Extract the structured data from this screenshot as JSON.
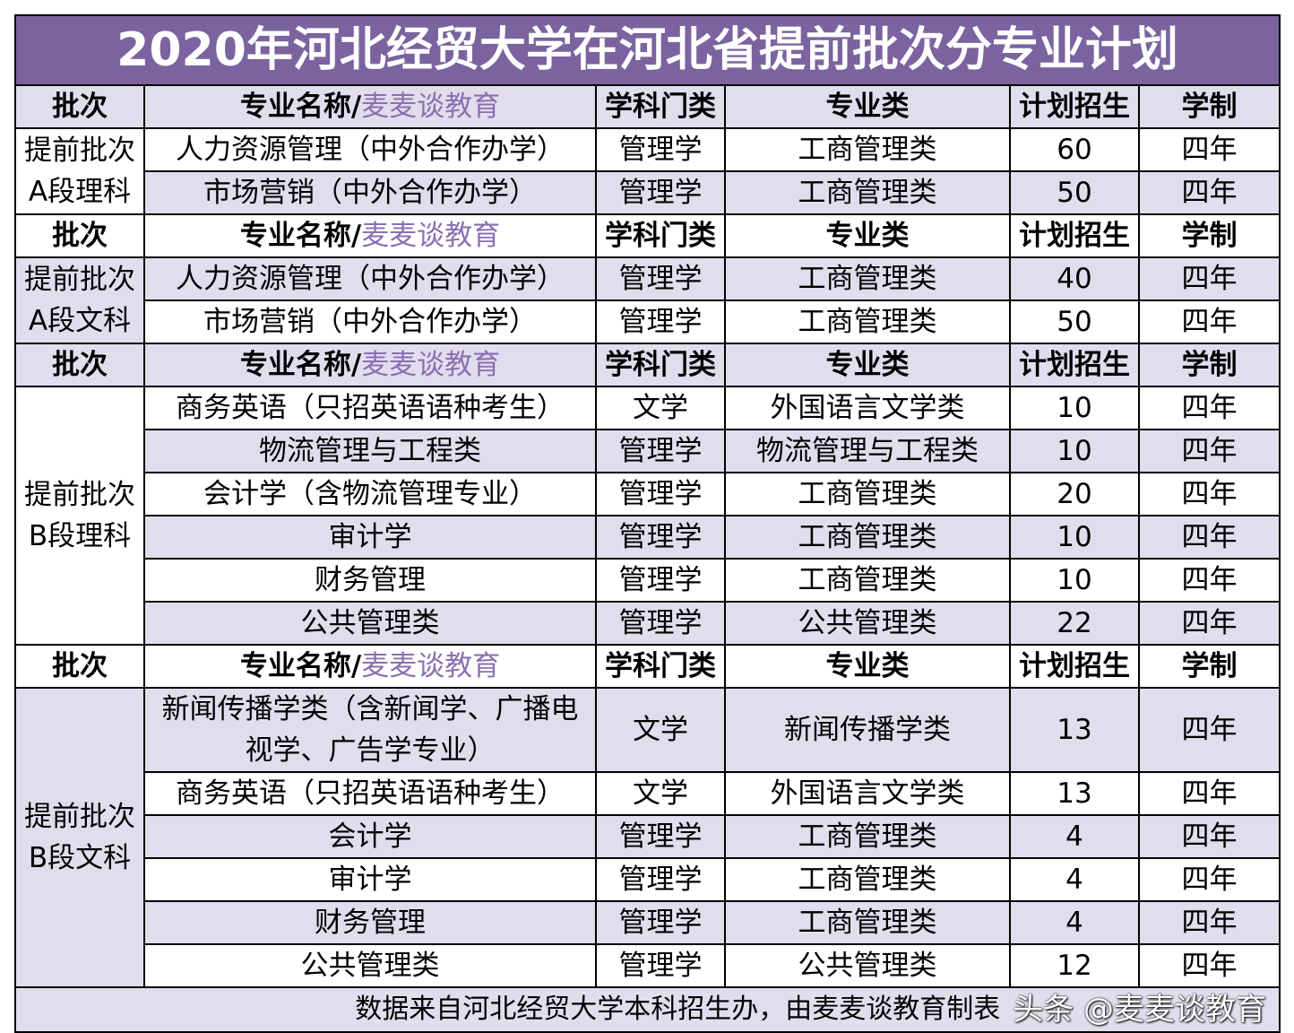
{
  "title": "2020年河北经贸大学在河北省提前批次分专业计划",
  "header": {
    "batch": "批次",
    "major_name": "专业名称/",
    "major_name_brand": "麦麦谈教育",
    "discipline": "学科门类",
    "major_class": "专业类",
    "plan": "计划招生",
    "duration": "学制"
  },
  "colors": {
    "title_bg": "#7b63a0",
    "row_alt": "#e2dded",
    "brand_text": "#8a6fb0"
  },
  "sections": [
    {
      "batch": "提前批次A段理科",
      "rows": [
        {
          "major": "人力资源管理（中外合作办学）",
          "discipline": "管理学",
          "class": "工商管理类",
          "plan": "60",
          "duration": "四年"
        },
        {
          "major": "市场营销（中外合作办学）",
          "discipline": "管理学",
          "class": "工商管理类",
          "plan": "50",
          "duration": "四年"
        }
      ]
    },
    {
      "batch": "提前批次A段文科",
      "rows": [
        {
          "major": "人力资源管理（中外合作办学）",
          "discipline": "管理学",
          "class": "工商管理类",
          "plan": "40",
          "duration": "四年"
        },
        {
          "major": "市场营销（中外合作办学）",
          "discipline": "管理学",
          "class": "工商管理类",
          "plan": "50",
          "duration": "四年"
        }
      ]
    },
    {
      "batch": "提前批次B段理科",
      "rows": [
        {
          "major": "商务英语（只招英语语种考生）",
          "discipline": "文学",
          "class": "外国语言文学类",
          "plan": "10",
          "duration": "四年"
        },
        {
          "major": "物流管理与工程类",
          "discipline": "管理学",
          "class": "物流管理与工程类",
          "plan": "10",
          "duration": "四年"
        },
        {
          "major": "会计学（含物流管理专业）",
          "discipline": "管理学",
          "class": "工商管理类",
          "plan": "20",
          "duration": "四年"
        },
        {
          "major": "审计学",
          "discipline": "管理学",
          "class": "工商管理类",
          "plan": "10",
          "duration": "四年"
        },
        {
          "major": "财务管理",
          "discipline": "管理学",
          "class": "工商管理类",
          "plan": "10",
          "duration": "四年"
        },
        {
          "major": "公共管理类",
          "discipline": "管理学",
          "class": "公共管理类",
          "plan": "22",
          "duration": "四年"
        }
      ]
    },
    {
      "batch": "提前批次B段文科",
      "rows": [
        {
          "major": "新闻传播学类（含新闻学、广播电视学、广告学专业）",
          "discipline": "文学",
          "class": "新闻传播学类",
          "plan": "13",
          "duration": "四年"
        },
        {
          "major": "商务英语（只招英语语种考生）",
          "discipline": "文学",
          "class": "外国语言文学类",
          "plan": "13",
          "duration": "四年"
        },
        {
          "major": "会计学",
          "discipline": "管理学",
          "class": "工商管理类",
          "plan": "4",
          "duration": "四年"
        },
        {
          "major": "审计学",
          "discipline": "管理学",
          "class": "工商管理类",
          "plan": "4",
          "duration": "四年"
        },
        {
          "major": "财务管理",
          "discipline": "管理学",
          "class": "工商管理类",
          "plan": "4",
          "duration": "四年"
        },
        {
          "major": "公共管理类",
          "discipline": "管理学",
          "class": "公共管理类",
          "plan": "12",
          "duration": "四年"
        }
      ]
    }
  ],
  "footer": "数据来自河北经贸大学本科招生办，由麦麦谈教育制表",
  "watermark": "头条 @麦麦谈教育"
}
